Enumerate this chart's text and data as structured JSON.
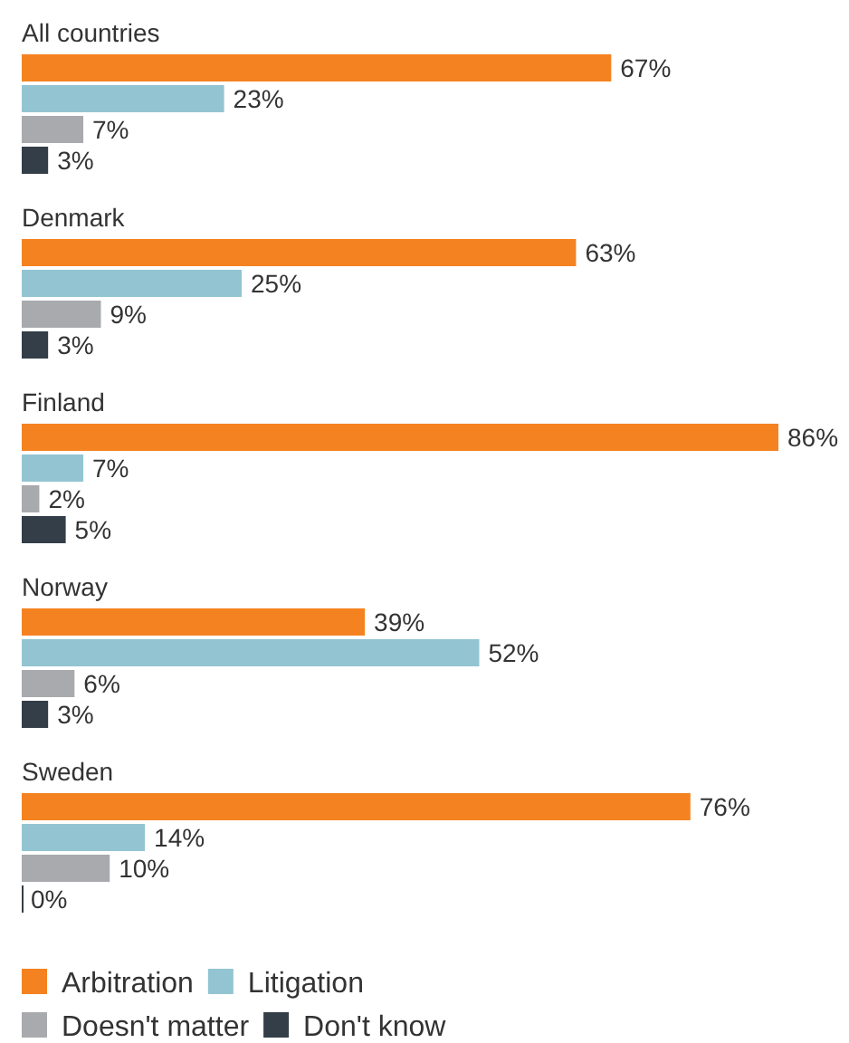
{
  "chart_data": {
    "type": "bar",
    "orientation": "horizontal",
    "categories": [
      "All countries",
      "Denmark",
      "Finland",
      "Norway",
      "Sweden"
    ],
    "series": [
      {
        "name": "Arbitration",
        "color": "#f58220",
        "values": [
          67,
          63,
          86,
          39,
          76
        ],
        "value_labels": [
          "67%",
          "63%",
          "86%",
          "39%",
          "76%"
        ]
      },
      {
        "name": "Litigation",
        "color": "#93c4d2",
        "values": [
          23,
          25,
          7,
          52,
          14
        ],
        "value_labels": [
          "23%",
          "25%",
          "7%",
          "52%",
          "14%"
        ]
      },
      {
        "name": "Doesn't matter",
        "color": "#a9aaad",
        "values": [
          7,
          9,
          2,
          6,
          10
        ],
        "value_labels": [
          "7%",
          "9%",
          "2%",
          "6%",
          "10%"
        ]
      },
      {
        "name": "Don't know",
        "color": "#333e48",
        "values": [
          3,
          3,
          5,
          3,
          0
        ],
        "value_labels": [
          "3%",
          "3%",
          "5%",
          "3%",
          "0%"
        ]
      }
    ],
    "legend": "bottom"
  }
}
